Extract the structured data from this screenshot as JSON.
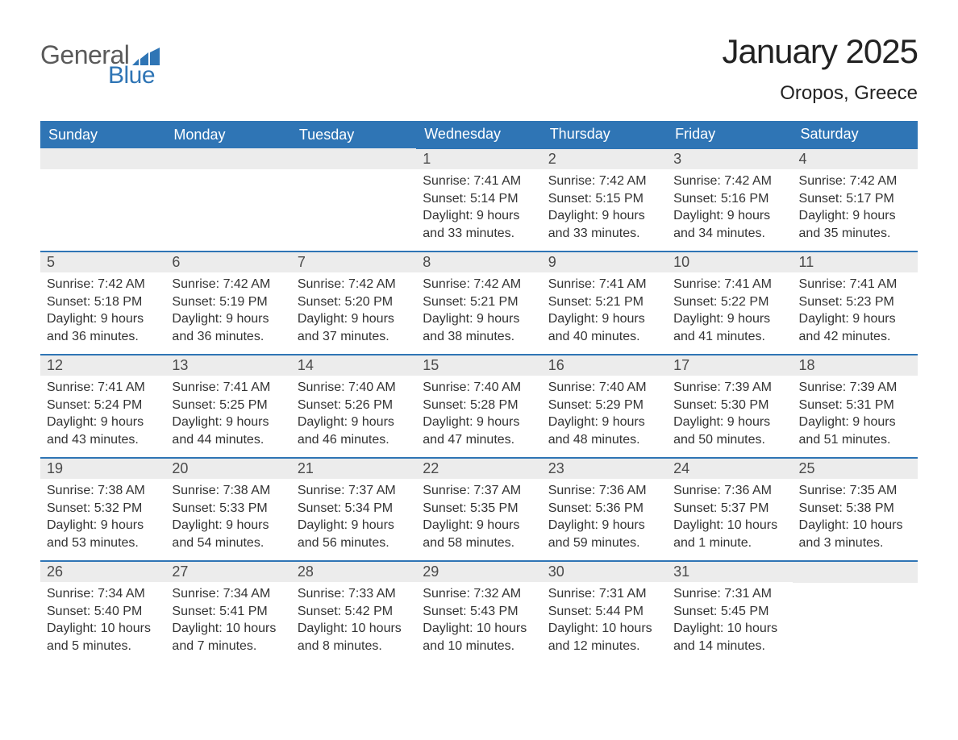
{
  "logo": {
    "text_general": "General",
    "text_blue": "Blue",
    "chart_bars_color": "#2f75b5"
  },
  "title": "January 2025",
  "location": "Oropos, Greece",
  "colors": {
    "header_bg": "#2f75b5",
    "header_text": "#ffffff",
    "daynum_bg": "#ececec",
    "daynum_text": "#4a4a4a",
    "body_text": "#333333",
    "row_divider": "#2f75b5"
  },
  "weekdays": [
    "Sunday",
    "Monday",
    "Tuesday",
    "Wednesday",
    "Thursday",
    "Friday",
    "Saturday"
  ],
  "weeks": [
    [
      {
        "day": null
      },
      {
        "day": null
      },
      {
        "day": null
      },
      {
        "day": "1",
        "sunrise": "Sunrise: 7:41 AM",
        "sunset": "Sunset: 5:14 PM",
        "daylight": "Daylight: 9 hours and 33 minutes."
      },
      {
        "day": "2",
        "sunrise": "Sunrise: 7:42 AM",
        "sunset": "Sunset: 5:15 PM",
        "daylight": "Daylight: 9 hours and 33 minutes."
      },
      {
        "day": "3",
        "sunrise": "Sunrise: 7:42 AM",
        "sunset": "Sunset: 5:16 PM",
        "daylight": "Daylight: 9 hours and 34 minutes."
      },
      {
        "day": "4",
        "sunrise": "Sunrise: 7:42 AM",
        "sunset": "Sunset: 5:17 PM",
        "daylight": "Daylight: 9 hours and 35 minutes."
      }
    ],
    [
      {
        "day": "5",
        "sunrise": "Sunrise: 7:42 AM",
        "sunset": "Sunset: 5:18 PM",
        "daylight": "Daylight: 9 hours and 36 minutes."
      },
      {
        "day": "6",
        "sunrise": "Sunrise: 7:42 AM",
        "sunset": "Sunset: 5:19 PM",
        "daylight": "Daylight: 9 hours and 36 minutes."
      },
      {
        "day": "7",
        "sunrise": "Sunrise: 7:42 AM",
        "sunset": "Sunset: 5:20 PM",
        "daylight": "Daylight: 9 hours and 37 minutes."
      },
      {
        "day": "8",
        "sunrise": "Sunrise: 7:42 AM",
        "sunset": "Sunset: 5:21 PM",
        "daylight": "Daylight: 9 hours and 38 minutes."
      },
      {
        "day": "9",
        "sunrise": "Sunrise: 7:41 AM",
        "sunset": "Sunset: 5:21 PM",
        "daylight": "Daylight: 9 hours and 40 minutes."
      },
      {
        "day": "10",
        "sunrise": "Sunrise: 7:41 AM",
        "sunset": "Sunset: 5:22 PM",
        "daylight": "Daylight: 9 hours and 41 minutes."
      },
      {
        "day": "11",
        "sunrise": "Sunrise: 7:41 AM",
        "sunset": "Sunset: 5:23 PM",
        "daylight": "Daylight: 9 hours and 42 minutes."
      }
    ],
    [
      {
        "day": "12",
        "sunrise": "Sunrise: 7:41 AM",
        "sunset": "Sunset: 5:24 PM",
        "daylight": "Daylight: 9 hours and 43 minutes."
      },
      {
        "day": "13",
        "sunrise": "Sunrise: 7:41 AM",
        "sunset": "Sunset: 5:25 PM",
        "daylight": "Daylight: 9 hours and 44 minutes."
      },
      {
        "day": "14",
        "sunrise": "Sunrise: 7:40 AM",
        "sunset": "Sunset: 5:26 PM",
        "daylight": "Daylight: 9 hours and 46 minutes."
      },
      {
        "day": "15",
        "sunrise": "Sunrise: 7:40 AM",
        "sunset": "Sunset: 5:28 PM",
        "daylight": "Daylight: 9 hours and 47 minutes."
      },
      {
        "day": "16",
        "sunrise": "Sunrise: 7:40 AM",
        "sunset": "Sunset: 5:29 PM",
        "daylight": "Daylight: 9 hours and 48 minutes."
      },
      {
        "day": "17",
        "sunrise": "Sunrise: 7:39 AM",
        "sunset": "Sunset: 5:30 PM",
        "daylight": "Daylight: 9 hours and 50 minutes."
      },
      {
        "day": "18",
        "sunrise": "Sunrise: 7:39 AM",
        "sunset": "Sunset: 5:31 PM",
        "daylight": "Daylight: 9 hours and 51 minutes."
      }
    ],
    [
      {
        "day": "19",
        "sunrise": "Sunrise: 7:38 AM",
        "sunset": "Sunset: 5:32 PM",
        "daylight": "Daylight: 9 hours and 53 minutes."
      },
      {
        "day": "20",
        "sunrise": "Sunrise: 7:38 AM",
        "sunset": "Sunset: 5:33 PM",
        "daylight": "Daylight: 9 hours and 54 minutes."
      },
      {
        "day": "21",
        "sunrise": "Sunrise: 7:37 AM",
        "sunset": "Sunset: 5:34 PM",
        "daylight": "Daylight: 9 hours and 56 minutes."
      },
      {
        "day": "22",
        "sunrise": "Sunrise: 7:37 AM",
        "sunset": "Sunset: 5:35 PM",
        "daylight": "Daylight: 9 hours and 58 minutes."
      },
      {
        "day": "23",
        "sunrise": "Sunrise: 7:36 AM",
        "sunset": "Sunset: 5:36 PM",
        "daylight": "Daylight: 9 hours and 59 minutes."
      },
      {
        "day": "24",
        "sunrise": "Sunrise: 7:36 AM",
        "sunset": "Sunset: 5:37 PM",
        "daylight": "Daylight: 10 hours and 1 minute."
      },
      {
        "day": "25",
        "sunrise": "Sunrise: 7:35 AM",
        "sunset": "Sunset: 5:38 PM",
        "daylight": "Daylight: 10 hours and 3 minutes."
      }
    ],
    [
      {
        "day": "26",
        "sunrise": "Sunrise: 7:34 AM",
        "sunset": "Sunset: 5:40 PM",
        "daylight": "Daylight: 10 hours and 5 minutes."
      },
      {
        "day": "27",
        "sunrise": "Sunrise: 7:34 AM",
        "sunset": "Sunset: 5:41 PM",
        "daylight": "Daylight: 10 hours and 7 minutes."
      },
      {
        "day": "28",
        "sunrise": "Sunrise: 7:33 AM",
        "sunset": "Sunset: 5:42 PM",
        "daylight": "Daylight: 10 hours and 8 minutes."
      },
      {
        "day": "29",
        "sunrise": "Sunrise: 7:32 AM",
        "sunset": "Sunset: 5:43 PM",
        "daylight": "Daylight: 10 hours and 10 minutes."
      },
      {
        "day": "30",
        "sunrise": "Sunrise: 7:31 AM",
        "sunset": "Sunset: 5:44 PM",
        "daylight": "Daylight: 10 hours and 12 minutes."
      },
      {
        "day": "31",
        "sunrise": "Sunrise: 7:31 AM",
        "sunset": "Sunset: 5:45 PM",
        "daylight": "Daylight: 10 hours and 14 minutes."
      },
      {
        "day": null
      }
    ]
  ]
}
